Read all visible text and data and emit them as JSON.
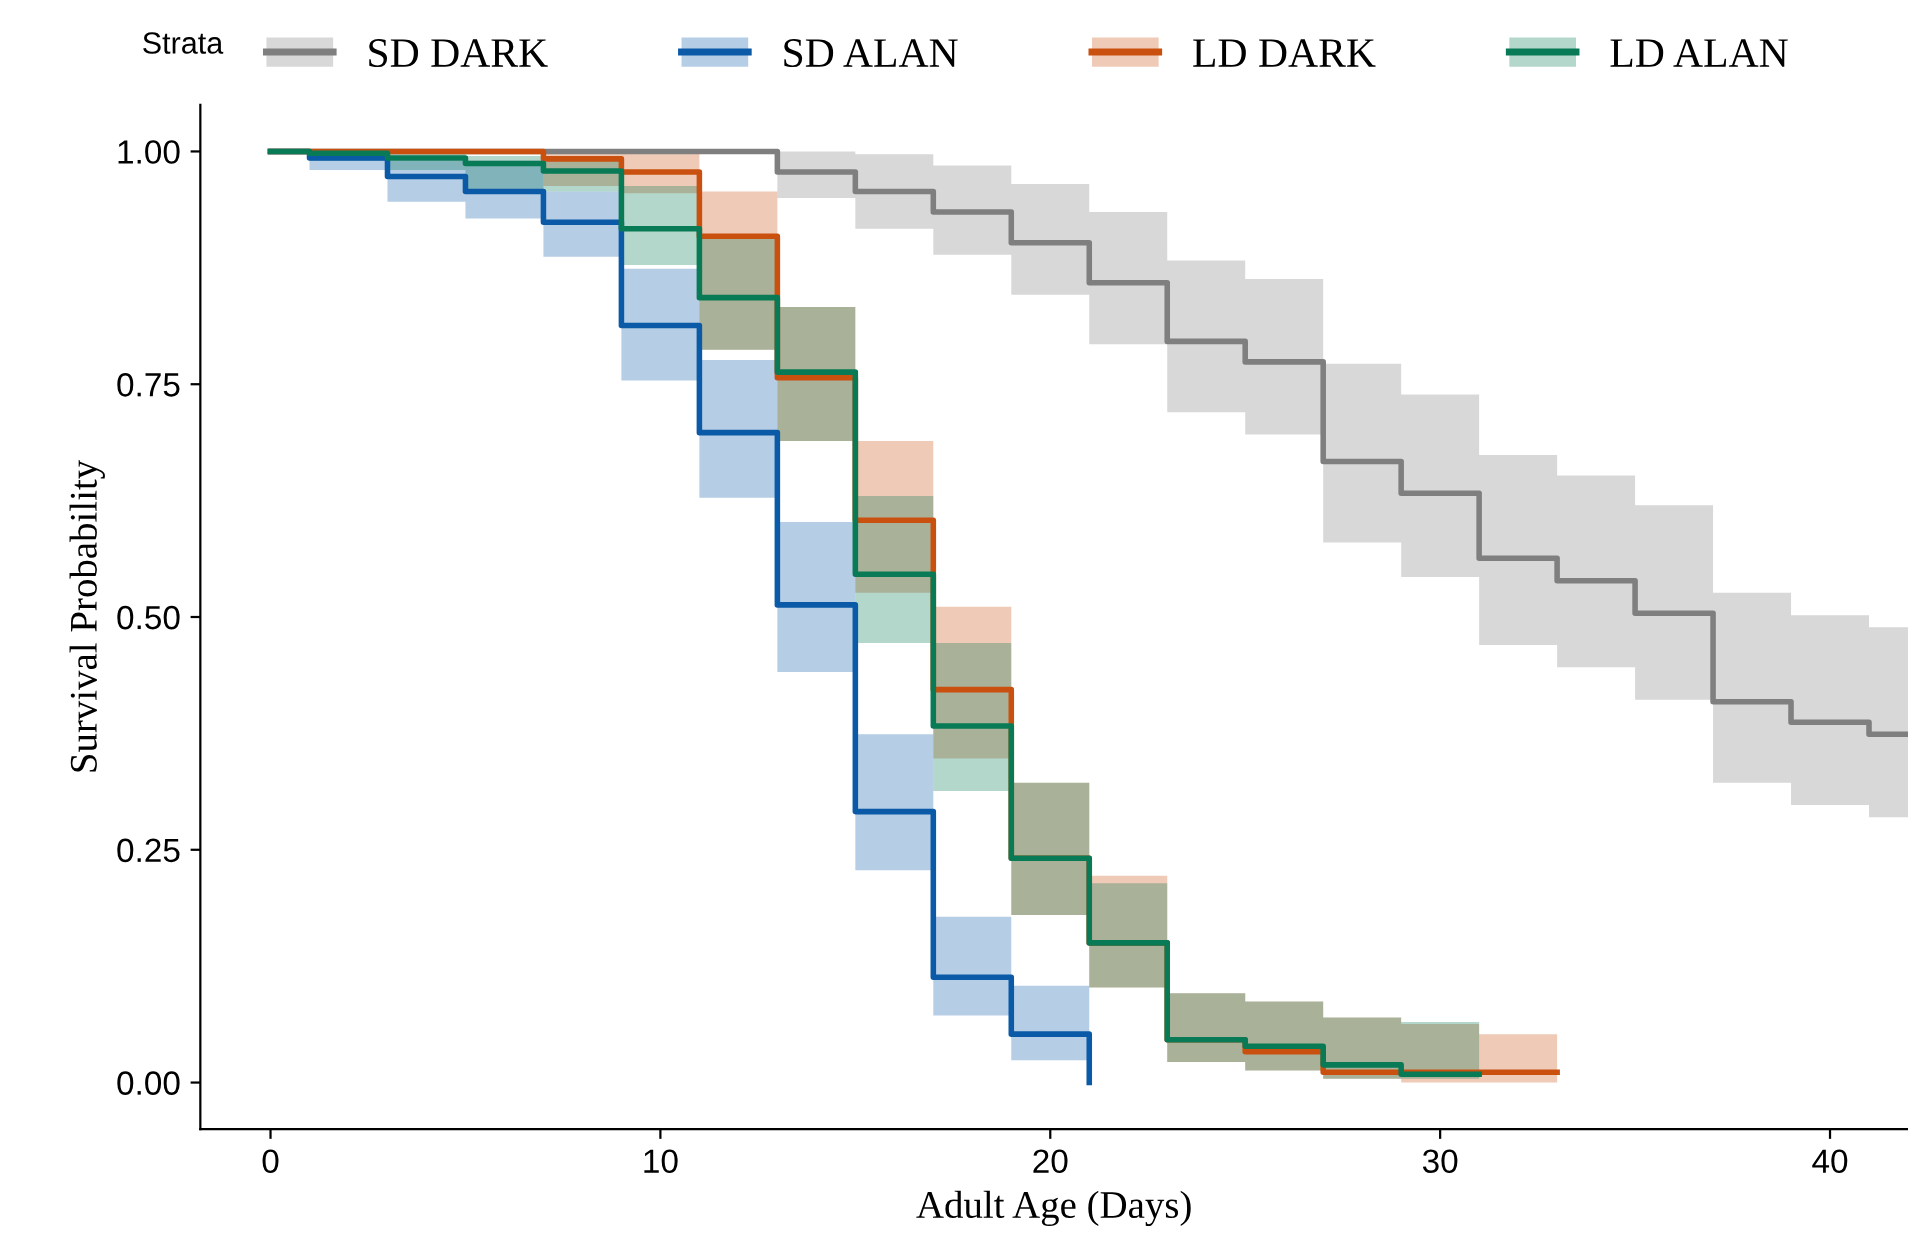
{
  "chart_data": {
    "type": "step",
    "xlabel": "Adult Age (Days)",
    "ylabel": "Survival Probability",
    "legend_title": "Strata",
    "legend": "top",
    "grid": false,
    "xlim": [
      -1.8,
      42
    ],
    "xticks": [
      0,
      10,
      20,
      30,
      40
    ],
    "ylim": [
      -0.05,
      1.05
    ],
    "yticks": [
      {
        "value": 0,
        "label": "0.00"
      },
      {
        "value": 0.25,
        "label": "0.25"
      },
      {
        "value": 0.5,
        "label": "0.50"
      },
      {
        "value": 0.75,
        "label": "0.75"
      },
      {
        "value": 1,
        "label": "1.00"
      }
    ],
    "series": [
      {
        "name": "SD DARK",
        "color": "#7f7f7f",
        "x": [
          0,
          13,
          15,
          17,
          19,
          21,
          23,
          25,
          27,
          29,
          31,
          33,
          35,
          37,
          39,
          41,
          42
        ],
        "values": [
          1,
          0.978,
          0.957,
          0.935,
          0.902,
          0.859,
          0.796,
          0.774,
          0.667,
          0.633,
          0.563,
          0.539,
          0.504,
          0.409,
          0.387,
          0.374,
          0.374
        ],
        "lower": [
          1,
          0.95,
          0.917,
          0.889,
          0.846,
          0.793,
          0.72,
          0.696,
          0.58,
          0.543,
          0.47,
          0.446,
          0.411,
          0.322,
          0.298,
          0.285,
          0.285
        ],
        "upper": [
          1,
          1.0,
          0.997,
          0.985,
          0.965,
          0.935,
          0.883,
          0.863,
          0.772,
          0.739,
          0.674,
          0.652,
          0.62,
          0.526,
          0.502,
          0.489,
          0.489
        ]
      },
      {
        "name": "SD ALAN",
        "color": "#0b5aa8",
        "x": [
          0,
          1,
          3,
          5,
          7,
          9,
          11,
          13,
          15,
          17,
          19,
          21
        ],
        "values": [
          1,
          0.993,
          0.973,
          0.957,
          0.924,
          0.813,
          0.698,
          0.513,
          0.291,
          0.113,
          0.052,
          0
        ],
        "lower": [
          1,
          0.98,
          0.946,
          0.928,
          0.887,
          0.754,
          0.628,
          0.441,
          0.228,
          0.072,
          0.024,
          0.024
        ],
        "upper": [
          1,
          1.0,
          0.99,
          0.99,
          0.957,
          0.874,
          0.776,
          0.602,
          0.374,
          0.178,
          0.104,
          0.104
        ]
      },
      {
        "name": "LD DARK",
        "color": "#c9500f",
        "x": [
          0,
          7,
          9,
          11,
          13,
          15,
          17,
          19,
          21,
          23,
          25,
          27,
          29,
          31,
          33
        ],
        "values": [
          1,
          0.992,
          0.978,
          0.909,
          0.757,
          0.604,
          0.422,
          0.241,
          0.15,
          0.046,
          0.033,
          0.011,
          0.011,
          0.011,
          0.011
        ],
        "lower": [
          1,
          0.963,
          0.955,
          0.787,
          0.689,
          0.526,
          0.348,
          0.18,
          0.102,
          0.022,
          0.013,
          0.004,
          0,
          0,
          0
        ],
        "upper": [
          1,
          1.0,
          1.0,
          0.957,
          0.833,
          0.689,
          0.511,
          0.322,
          0.222,
          0.096,
          0.087,
          0.07,
          0.063,
          0.052,
          0.052
        ]
      },
      {
        "name": "LD ALAN",
        "color": "#087a55",
        "x": [
          0,
          1,
          3,
          5,
          7,
          9,
          11,
          13,
          15,
          17,
          19,
          21,
          23,
          25,
          27,
          29,
          31
        ],
        "values": [
          1,
          0.998,
          0.993,
          0.987,
          0.979,
          0.917,
          0.843,
          0.763,
          0.546,
          0.383,
          0.241,
          0.15,
          0.046,
          0.039,
          0.019,
          0.009,
          0.009
        ],
        "lower": [
          1,
          0.99,
          0.98,
          0.957,
          0.957,
          0.878,
          0.787,
          0.689,
          0.472,
          0.313,
          0.18,
          0.102,
          0.022,
          0.013,
          0.004,
          0.004,
          0.004
        ],
        "upper": [
          1,
          1.0,
          1.0,
          0.995,
          0.995,
          0.963,
          0.907,
          0.833,
          0.63,
          0.472,
          0.322,
          0.214,
          0.096,
          0.087,
          0.07,
          0.065,
          0.065
        ]
      }
    ]
  }
}
